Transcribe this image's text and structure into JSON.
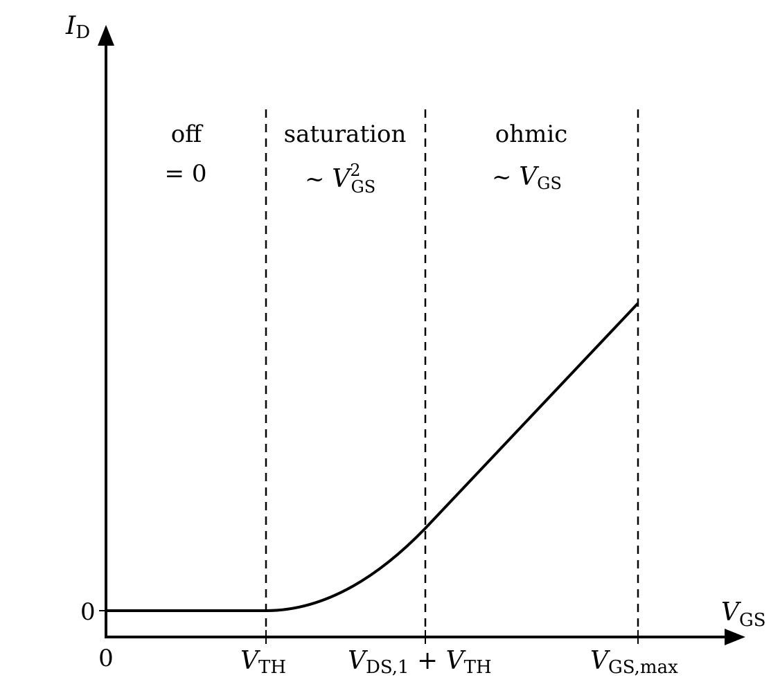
{
  "y_axis": {
    "symbol": "I",
    "subscript": "D",
    "zero_label": "0"
  },
  "x_axis": {
    "symbol": "V",
    "subscript": "GS",
    "ticks": [
      {
        "text": "0"
      },
      {
        "main": "V",
        "sub": "TH"
      },
      {
        "main": "V",
        "sub": "DS,1",
        "plus": " + ",
        "main2": "V",
        "sub2": "TH"
      },
      {
        "main": "V",
        "sub": "GS,max"
      }
    ]
  },
  "regions": [
    {
      "name": "off",
      "formula": "= 0"
    },
    {
      "name": "saturation",
      "formula_prefix": "~ ",
      "formula_var": "V",
      "formula_sub": "GS",
      "formula_sup": "2"
    },
    {
      "name": "ohmic",
      "formula_prefix": "~ ",
      "formula_var": "V",
      "formula_sub": "GS"
    }
  ],
  "colors": {
    "line": "#000000",
    "background": "#ffffff"
  }
}
